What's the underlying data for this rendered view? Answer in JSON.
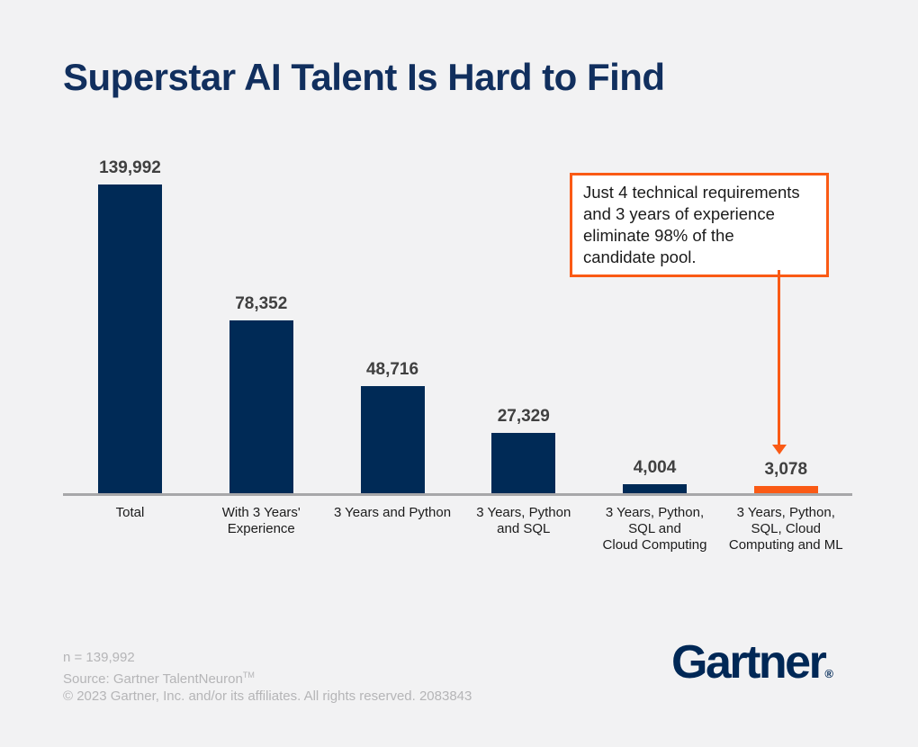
{
  "title": "Superstar AI Talent Is Hard to Find",
  "chart_data": {
    "type": "bar",
    "title": "Superstar AI Talent Is Hard to Find",
    "xlabel": "",
    "ylabel": "",
    "ylim": [
      0,
      139992
    ],
    "grid": false,
    "legend": null,
    "categories": [
      "Total",
      "With 3 Years'\nExperience",
      "3 Years and Python",
      "3 Years, Python\nand SQL",
      "3 Years, Python,\nSQL and\nCloud Computing",
      "3 Years, Python,\nSQL, Cloud\nComputing and ML"
    ],
    "values": [
      139992,
      78352,
      48716,
      27329,
      4004,
      3078
    ],
    "value_labels": [
      "139,992",
      "78,352",
      "48,716",
      "27,329",
      "4,004",
      "3,078"
    ],
    "highlight_index": 5,
    "bar_color": "#002A56",
    "highlight_color": "#FA5A15",
    "axis_color": "#A7A7A9"
  },
  "annotation": {
    "text": "Just 4 technical requirements\nand 3 years of experience\neliminate 98% of the\ncandidate pool.",
    "border_color": "#FA5A15"
  },
  "footer": {
    "n_label": "n = 139,992",
    "source_prefix": "Source: Gartner TalentNeuron",
    "source_tm": "TM",
    "copyright": "© 2023 Gartner, Inc. and/or its affiliates. All rights reserved. 2083843"
  },
  "logo": {
    "text": "Gartner",
    "registered": "®",
    "color": "#002856"
  },
  "colors": {
    "background": "#F2F2F3",
    "title": "#112F5E",
    "value_label": "#404040",
    "category_label": "#1C1C1C",
    "footer_text": "#B5B5B7"
  }
}
